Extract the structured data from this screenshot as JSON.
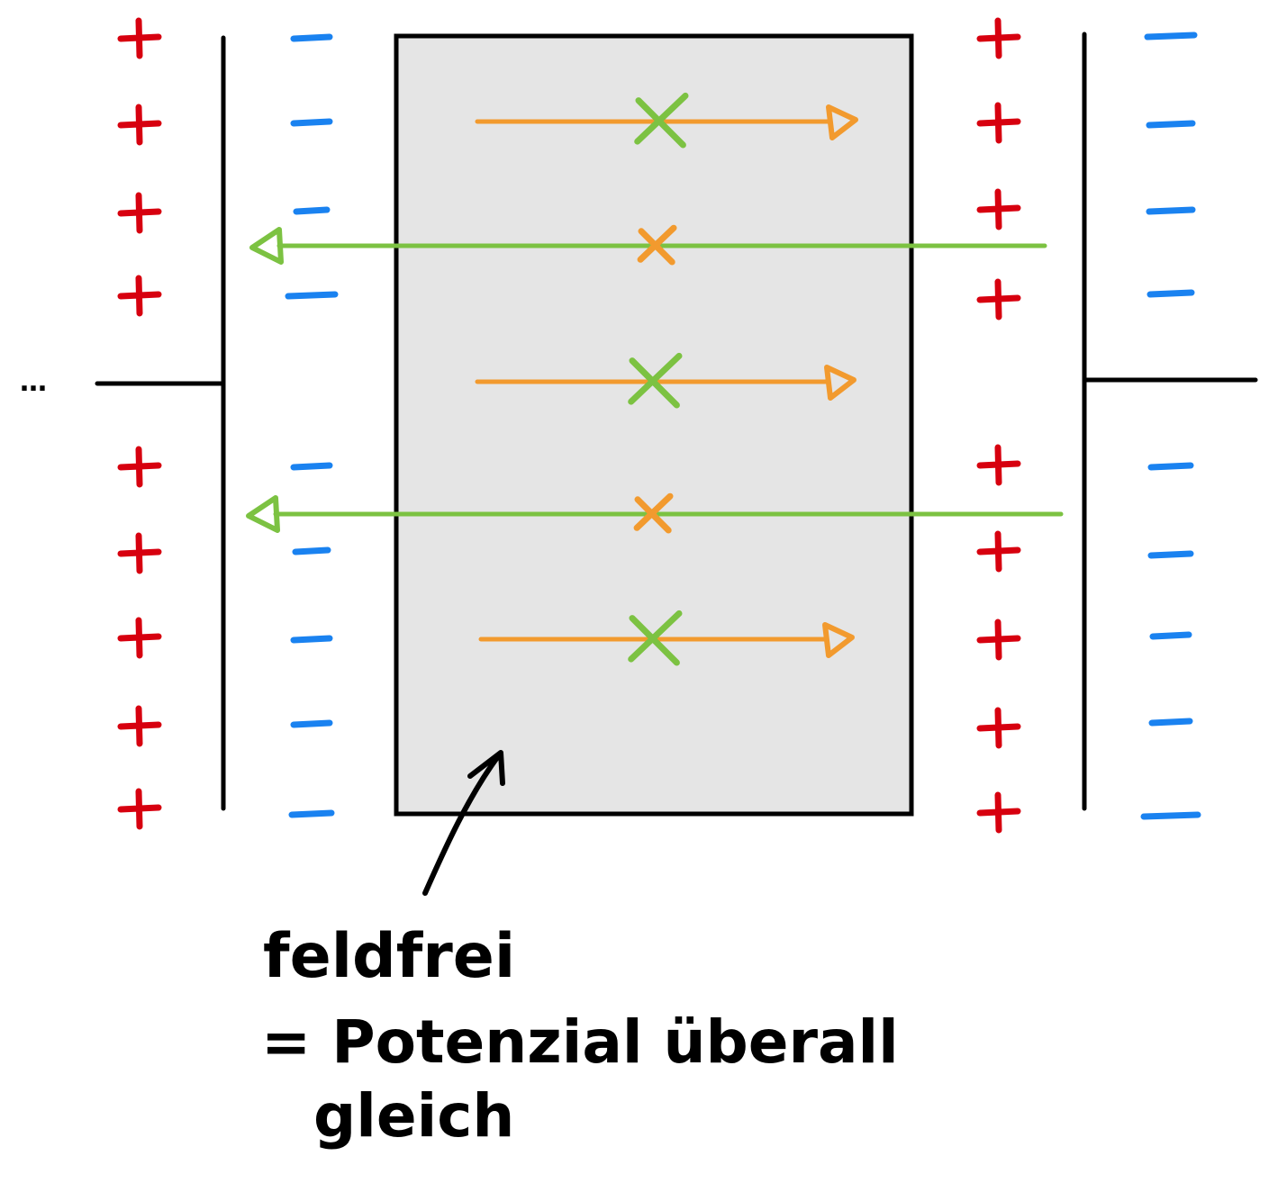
{
  "colors": {
    "positive": "#d7000f",
    "negative": "#1a82f0",
    "orange": "#f29a2e",
    "green": "#7cc242",
    "plate": "#000000",
    "conductor_fill": "#e5e5e5",
    "text": "#000000"
  },
  "diagram": {
    "wire_left_ellipsis": "…",
    "annotation": {
      "line1": "feldfrei",
      "line2": "= Potenzial überall",
      "line3": "gleich"
    },
    "left_plate": {
      "outer_sign": "+",
      "inner_sign": "−",
      "sign_count": 9
    },
    "right_plate": {
      "outer_sign": "+",
      "inner_sign": "−",
      "sign_count": 9
    },
    "field_lines": [
      {
        "color": "orange",
        "direction": "right",
        "marker": "x-green"
      },
      {
        "color": "green",
        "direction": "left",
        "marker": "x-orange"
      },
      {
        "color": "orange",
        "direction": "right",
        "marker": "x-green"
      },
      {
        "color": "green",
        "direction": "left",
        "marker": "x-orange"
      },
      {
        "color": "orange",
        "direction": "right",
        "marker": "x-green"
      }
    ]
  }
}
